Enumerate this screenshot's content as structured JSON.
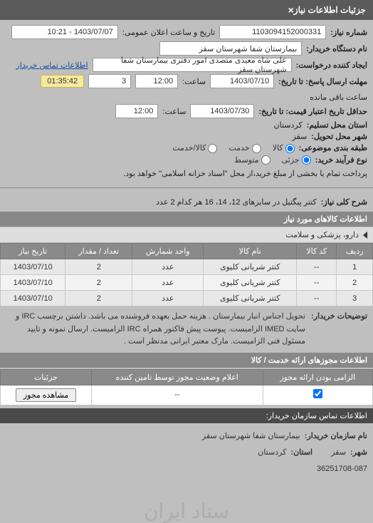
{
  "header": {
    "title": "جزئیات اطلاعات نیاز"
  },
  "info": {
    "req_no_label": "شماره نیاز:",
    "req_no": "1103094152000331",
    "public_date_label": "تاریخ و ساعت اعلان عمومی:",
    "public_date": "1403/07/07 - 10:21",
    "buyer_label": "نام دستگاه خریدار:",
    "buyer": "بیمارستان شفا شهرستان سقز",
    "requester_label": "ایجاد کننده درخواست:",
    "requester": "علی شاه معیدی متصدی امور دفتری بیمارستان شفا شهرستان سقز",
    "contact_link": "اطلاعات تماس خریدار",
    "deadline_label": "مهلت ارسال پاسخ: تا تاریخ:",
    "deadline_date": "1403/07/10",
    "time_label": "ساعت:",
    "deadline_time": "12:00",
    "remain_days": "3",
    "countdown": "01:35:42",
    "remain_suffix": "ساعت باقی مانده",
    "validity_label": "حداقل تاریخ اعتبار قیمت: تا تاریخ:",
    "validity_date": "1403/07/30",
    "validity_time": "12:00",
    "province_label": "استان محل تسلیم:",
    "province": "کردستان",
    "city_label": "شهر محل تحویل:",
    "city": "سقز",
    "category_label": "طبقه بندی موضوعی:",
    "cat_goods": "کالا",
    "cat_service": "خدمت",
    "cat_goods_service": "کالا/خدمت",
    "purchase_label": "نوع فرآیند خرید:",
    "pur_small": "جزئی",
    "pur_medium": "متوسط",
    "purchase_note": "پرداخت تمام یا بخشی از مبلغ خرید،از محل \"اسناد خزانه اسلامی\" خواهد بود."
  },
  "need": {
    "title_label": "شرح کلی نیاز:",
    "title": "کتتر پیگتیل در سایزهای 12، 14، 16 هر کدام 2 عدد"
  },
  "items_section": {
    "heading": "اطلاعات کالاهای مورد نیاز",
    "group": "دارو، پزشکی و سلامت",
    "columns": [
      "ردیف",
      "کد کالا",
      "نام کالا",
      "واحد شمارش",
      "تعداد / مقدار",
      "تاریخ نیاز"
    ],
    "rows": [
      {
        "n": "1",
        "code": "--",
        "name": "کتتر شریانی کلیوی",
        "unit": "عدد",
        "qty": "2",
        "date": "1403/07/10"
      },
      {
        "n": "2",
        "code": "--",
        "name": "کتتر شریانی کلیوی",
        "unit": "عدد",
        "qty": "2",
        "date": "1403/07/10"
      },
      {
        "n": "3",
        "code": "--",
        "name": "کتتر شریانی کلیوی",
        "unit": "عدد",
        "qty": "2",
        "date": "1403/07/10"
      }
    ]
  },
  "watermark": "ستاد ایران",
  "description": {
    "label": "توضیحات خریدار:",
    "text": "تحویل اجناس انبار بیمارستان . هزینه حمل بعهده فروشنده می باشد. داشتن برچسب IRC و سایت IMED الزامیست. پیوست پیش فاکتور همراه IRC الزامیست. ارسال نمونه و تایید مسئول فنی الزامیست. مارک معتبر ایرانی مدنظر است ."
  },
  "permits": {
    "heading": "اطلاعات مجوزهای ارائه خدمت / کالا",
    "columns": [
      "الزامی بودن ارائه مجوز",
      "اعلام وضعیت مجوز توسط تامین کننده",
      "جزئیات"
    ],
    "row": {
      "checked": true,
      "status": "--",
      "action": "مشاهده مجوز"
    }
  },
  "contact": {
    "heading": "اطلاعات تماس سازمان خریدار:",
    "org_label": "نام سازمان خریدار:",
    "org": "بیمارستان شفا شهرستان سقز",
    "city_label": "شهر:",
    "city": "سقز",
    "prov_label": "استان:",
    "prov": "کردستان",
    "phone": "36251708-087"
  },
  "colors": {
    "header_bg": "#5a5a5a",
    "subhead_bg": "#888888",
    "row_bg": "#e8e8e8",
    "countdown_bg": "#f7e9a0"
  }
}
